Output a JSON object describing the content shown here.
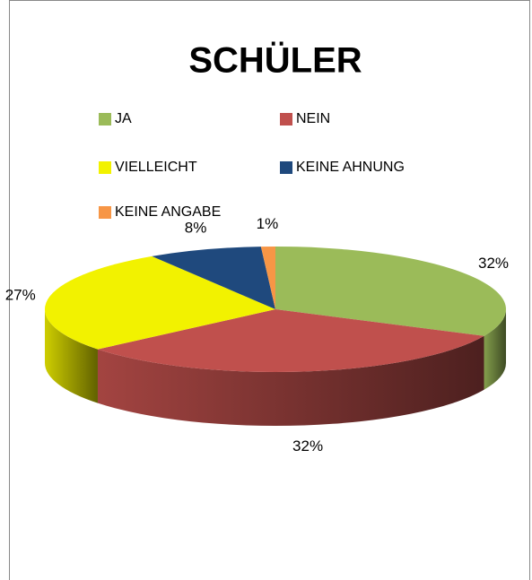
{
  "chart_data": {
    "type": "pie",
    "title": "SCHÜLER",
    "categories": [
      "JA",
      "NEIN",
      "VIELLEICHT",
      "KEINE AHNUNG",
      "KEINE ANGABE"
    ],
    "values": [
      32,
      32,
      27,
      8,
      1
    ],
    "value_labels": [
      "32%",
      "32%",
      "27%",
      "8%",
      "1%"
    ],
    "colors": [
      "#9bbb59",
      "#c0504d",
      "#f2f200",
      "#1f497d",
      "#f79646"
    ],
    "legend": "top"
  }
}
